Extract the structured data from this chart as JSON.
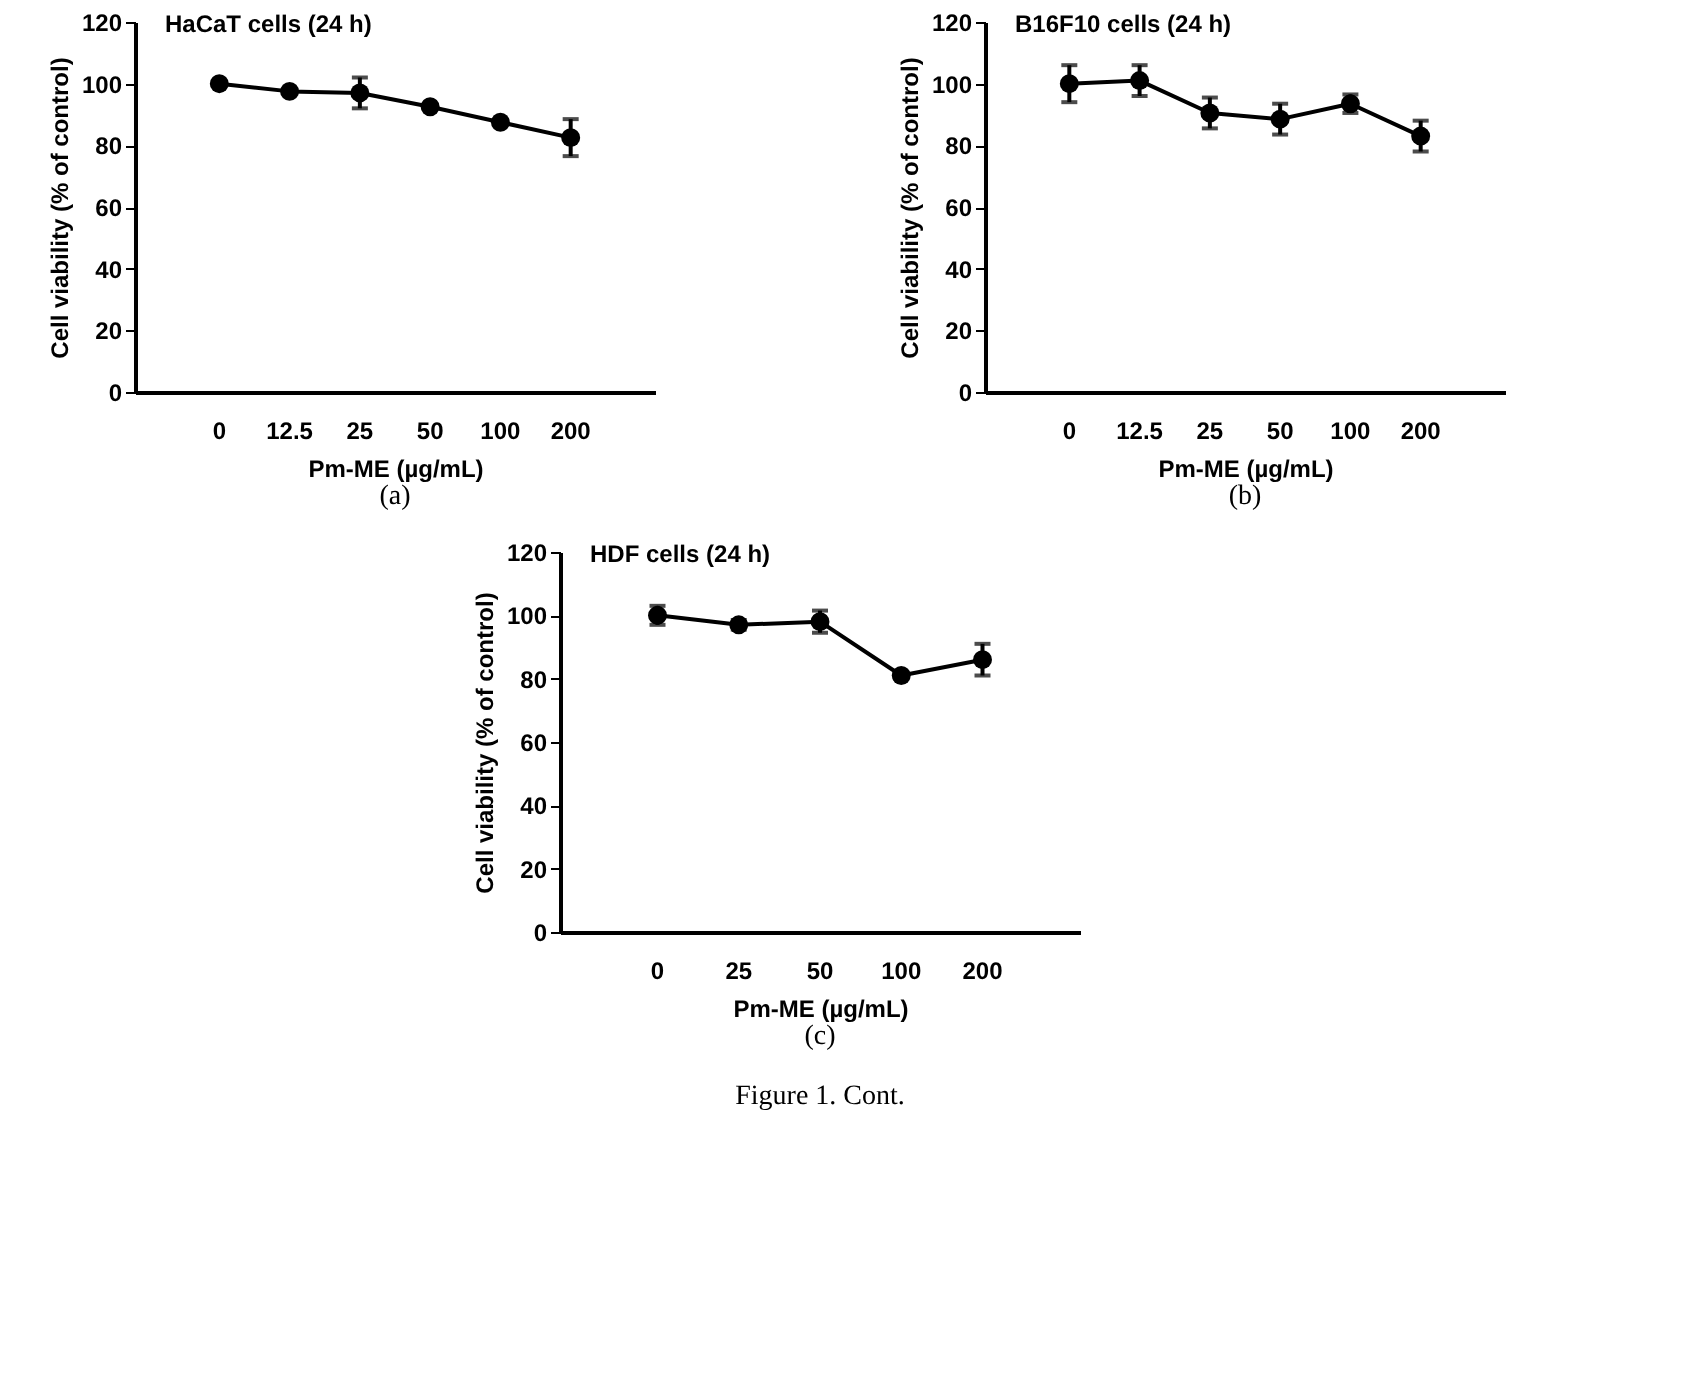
{
  "chart_data": [
    {
      "type": "line",
      "title": "HaCaT cells (24 h)",
      "xlabel": "Pm-ME (µg/mL)",
      "ylabel": "Cell viability (% of control)",
      "categories": [
        "0",
        "12.5",
        "25",
        "50",
        "100",
        "200"
      ],
      "series": [
        {
          "color": "#000000",
          "values": [
            100,
            97.5,
            97,
            92.5,
            87.5,
            82.5
          ],
          "errors": [
            null,
            null,
            5,
            null,
            null,
            6
          ]
        }
      ],
      "ylim": [
        0,
        120
      ],
      "yticks": [
        0,
        20,
        40,
        60,
        80,
        100,
        120
      ],
      "grid": false,
      "marker": "circle",
      "line_style": "solid",
      "annotations": [
        "(a)"
      ]
    },
    {
      "type": "line",
      "title": "B16F10 cells (24 h)",
      "xlabel": "Pm-ME (µg/mL)",
      "ylabel": "Cell viability (% of control)",
      "categories": [
        "0",
        "12.5",
        "25",
        "50",
        "100",
        "200"
      ],
      "series": [
        {
          "color": "#000000",
          "values": [
            100,
            101,
            90.5,
            88.5,
            93.5,
            83
          ],
          "errors": [
            6,
            5,
            5,
            5,
            3,
            5
          ]
        }
      ],
      "ylim": [
        0,
        120
      ],
      "yticks": [
        0,
        20,
        40,
        60,
        80,
        100,
        120
      ],
      "grid": false,
      "marker": "circle",
      "line_style": "solid",
      "annotations": [
        "(b)"
      ]
    },
    {
      "type": "line",
      "title": "HDF cells (24 h)",
      "xlabel": "Pm-ME (µg/mL)",
      "ylabel": "Cell viability (% of control)",
      "categories": [
        "0",
        "25",
        "50",
        "100",
        "200"
      ],
      "series": [
        {
          "color": "#000000",
          "values": [
            100,
            97,
            98,
            81,
            86
          ],
          "errors": [
            3,
            1.5,
            3.5,
            1,
            5
          ]
        }
      ],
      "ylim": [
        0,
        120
      ],
      "yticks": [
        0,
        20,
        40,
        60,
        80,
        100,
        120
      ],
      "grid": false,
      "marker": "circle",
      "line_style": "solid",
      "annotations": [
        "(c)",
        "Figure 1. Cont."
      ]
    }
  ]
}
